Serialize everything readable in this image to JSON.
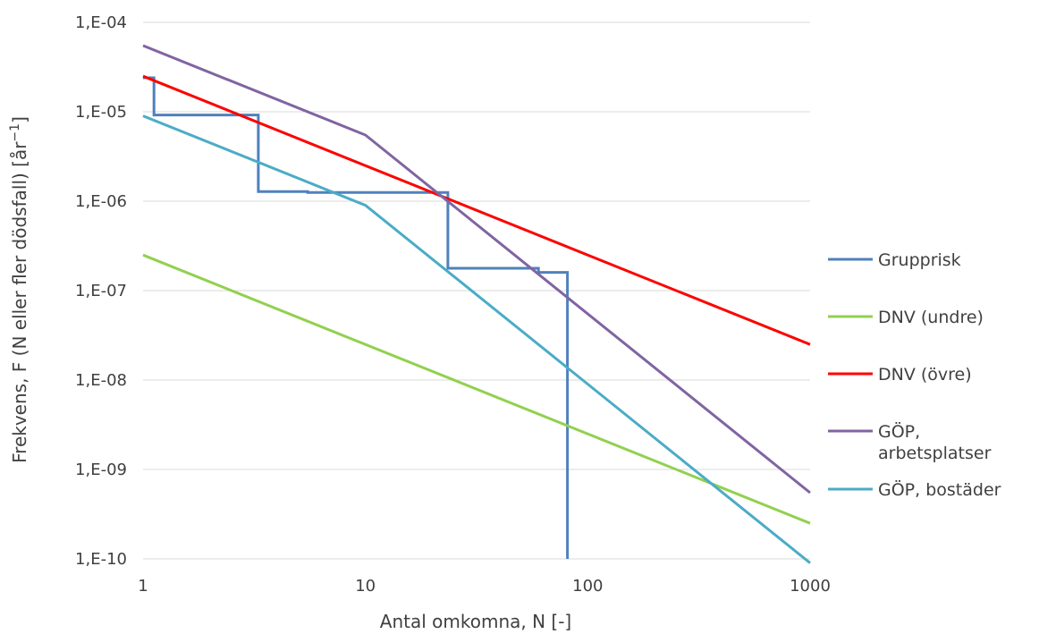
{
  "chart_data": {
    "type": "line",
    "xlabel": "Antal omkomna, N [-]",
    "ylabel": "Frekvens, F (N eller fler dödsfall) [år",
    "ylabel_sup": "−1",
    "ylabel_end": "]",
    "xscale": "log",
    "yscale": "log",
    "xlim": [
      1,
      1000
    ],
    "ylim": [
      1e-10,
      0.0001
    ],
    "grid": "horizontal",
    "legend_position": "right",
    "x_ticks": [
      {
        "value": 1,
        "label": "1"
      },
      {
        "value": 10,
        "label": "10"
      },
      {
        "value": 100,
        "label": "100"
      },
      {
        "value": 1000,
        "label": "1000"
      }
    ],
    "y_ticks": [
      {
        "value": 1e-10,
        "label": "1,E-10"
      },
      {
        "value": 1e-09,
        "label": "1,E-09"
      },
      {
        "value": 1e-08,
        "label": "1,E-08"
      },
      {
        "value": 1e-07,
        "label": "1,E-07"
      },
      {
        "value": 1e-06,
        "label": "1,E-06"
      },
      {
        "value": 1e-05,
        "label": "1,E-05"
      },
      {
        "value": 0.0001,
        "label": "1,E-04"
      }
    ],
    "series": [
      {
        "name": "Grupprisk",
        "color": "#4f81bd",
        "points": [
          [
            1,
            2.4e-05
          ],
          [
            1.12,
            2.4e-05
          ],
          [
            1.12,
            9.2e-06
          ],
          [
            3.3,
            9.2e-06
          ],
          [
            3.3,
            1.28e-06
          ],
          [
            5.5,
            1.28e-06
          ],
          [
            5.5,
            1.25e-06
          ],
          [
            23.5,
            1.25e-06
          ],
          [
            23.5,
            1.78e-07
          ],
          [
            60,
            1.78e-07
          ],
          [
            60,
            1.6e-07
          ],
          [
            81,
            1.6e-07
          ],
          [
            81,
            1e-10
          ]
        ]
      },
      {
        "name": "DNV (undre)",
        "color": "#92d050",
        "points": [
          [
            1,
            2.5e-07
          ],
          [
            1000,
            2.5e-10
          ]
        ]
      },
      {
        "name": "DNV (övre)",
        "color": "#ff0000",
        "points": [
          [
            1,
            2.5e-05
          ],
          [
            1000,
            2.5e-08
          ]
        ]
      },
      {
        "name": "GÖP, arbetsplatser",
        "legend_lines": [
          "GÖP,",
          "arbetsplatser"
        ],
        "color": "#8064a2",
        "points": [
          [
            1,
            5.5e-05
          ],
          [
            10,
            5.5e-06
          ],
          [
            1000,
            5.5e-10
          ]
        ]
      },
      {
        "name": "GÖP, bostäder",
        "color": "#4bacc6",
        "points": [
          [
            1,
            9e-06
          ],
          [
            10,
            9e-07
          ],
          [
            1000,
            9e-11
          ]
        ]
      }
    ]
  }
}
